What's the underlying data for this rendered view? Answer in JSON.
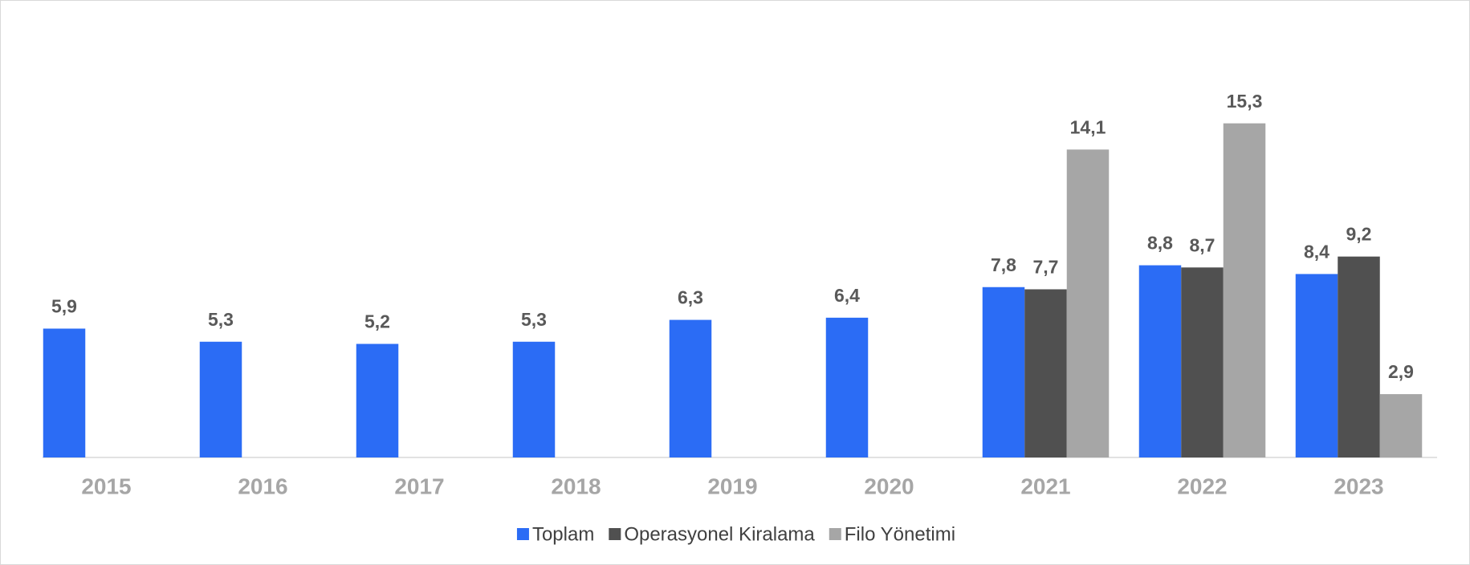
{
  "chart_data": {
    "type": "bar",
    "categories": [
      "2015",
      "2016",
      "2017",
      "2018",
      "2019",
      "2020",
      "2021",
      "2022",
      "2023"
    ],
    "series": [
      {
        "name": "Toplam",
        "color": "#2b6cf5",
        "values": [
          5.9,
          5.3,
          5.2,
          5.3,
          6.3,
          6.4,
          7.8,
          8.8,
          8.4
        ],
        "value_labels": [
          "5,9",
          "5,3",
          "5,2",
          "5,3",
          "6,3",
          "6,4",
          "7,8",
          "8,8",
          "8,4"
        ]
      },
      {
        "name": "Operasyonel Kiralama",
        "color": "#505050",
        "values": [
          null,
          null,
          null,
          null,
          null,
          null,
          7.7,
          8.7,
          9.2
        ],
        "value_labels": [
          null,
          null,
          null,
          null,
          null,
          null,
          "7,7",
          "8,7",
          "9,2"
        ]
      },
      {
        "name": "Filo Yönetimi",
        "color": "#a6a6a6",
        "values": [
          null,
          null,
          null,
          null,
          null,
          null,
          14.1,
          15.3,
          2.9
        ],
        "value_labels": [
          null,
          null,
          null,
          null,
          null,
          null,
          "14,1",
          "15,3",
          "2,9"
        ]
      }
    ],
    "ylim": [
      0,
      19
    ],
    "legend": "bottom"
  }
}
